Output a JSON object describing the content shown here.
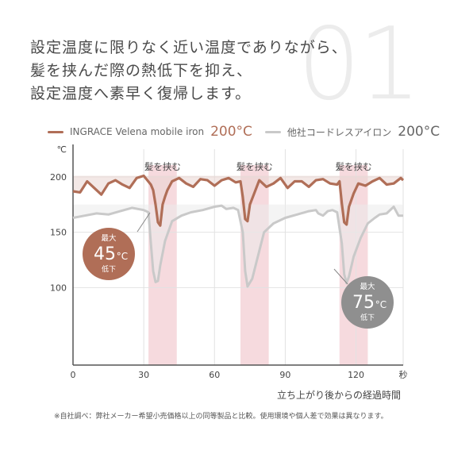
{
  "headline": {
    "line1": "設定温度に限りなく近い温度でありながら、",
    "line2": "髪を挟んだ際の熱低下を抑え、",
    "line3": "設定温度へ素早く復帰します。"
  },
  "big_number": "01",
  "legend": {
    "a_label": "INGRACE Velena mobile iron",
    "a_temp": "200°C",
    "b_label": "他社コードレスアイロン",
    "b_temp": "200°C"
  },
  "colors": {
    "a": "#b06e57",
    "b": "#c9c9c9",
    "band": "#f6dade",
    "callout_a": "#b06e57",
    "callout_b": "#8f8f8f"
  },
  "callouts": {
    "a": {
      "top": "最大",
      "value": "45",
      "unit": "°C",
      "bottom": "低下"
    },
    "b": {
      "top": "最大",
      "value": "75",
      "unit": "°C",
      "bottom": "低下"
    }
  },
  "chart_data": {
    "type": "line",
    "xlabel": "立ち上がり後からの経過時間",
    "ylabel": "℃",
    "x_unit_label": "秒",
    "xlim": [
      0,
      140
    ],
    "ylim": [
      30,
      225
    ],
    "xticks": [
      0,
      30,
      60,
      90,
      120
    ],
    "yticks": [
      100,
      150,
      200
    ],
    "grid": true,
    "annotations": [
      {
        "text": "髪を挟む",
        "x_start": 32,
        "x_end": 44
      },
      {
        "text": "髪を挟む",
        "x_start": 71,
        "x_end": 83
      },
      {
        "text": "髪を挟む",
        "x_start": 113,
        "x_end": 125
      }
    ],
    "series": [
      {
        "name": "INGRACE Velena mobile iron",
        "points": [
          [
            0,
            187
          ],
          [
            3,
            186
          ],
          [
            6,
            196
          ],
          [
            9,
            190
          ],
          [
            12,
            184
          ],
          [
            15,
            194
          ],
          [
            18,
            197
          ],
          [
            21,
            193
          ],
          [
            24,
            190
          ],
          [
            27,
            199
          ],
          [
            30,
            201
          ],
          [
            33,
            193
          ],
          [
            34,
            188
          ],
          [
            35,
            175
          ],
          [
            36,
            159
          ],
          [
            37,
            156
          ],
          [
            38,
            175
          ],
          [
            39,
            182
          ],
          [
            40,
            188
          ],
          [
            42,
            196
          ],
          [
            45,
            199
          ],
          [
            48,
            194
          ],
          [
            51,
            191
          ],
          [
            54,
            198
          ],
          [
            57,
            197
          ],
          [
            60,
            192
          ],
          [
            63,
            197
          ],
          [
            66,
            199
          ],
          [
            69,
            195
          ],
          [
            71,
            196
          ],
          [
            72,
            182
          ],
          [
            73,
            162
          ],
          [
            74,
            160
          ],
          [
            75,
            175
          ],
          [
            77,
            186
          ],
          [
            79,
            197
          ],
          [
            82,
            191
          ],
          [
            85,
            194
          ],
          [
            88,
            199
          ],
          [
            91,
            190
          ],
          [
            94,
            196
          ],
          [
            97,
            196
          ],
          [
            100,
            191
          ],
          [
            103,
            197
          ],
          [
            106,
            198
          ],
          [
            109,
            194
          ],
          [
            112,
            193
          ],
          [
            113,
            196
          ],
          [
            114,
            176
          ],
          [
            115,
            159
          ],
          [
            116,
            157
          ],
          [
            117,
            173
          ],
          [
            119,
            185
          ],
          [
            121,
            194
          ],
          [
            124,
            192
          ],
          [
            127,
            196
          ],
          [
            130,
            199
          ],
          [
            133,
            193
          ],
          [
            136,
            194
          ],
          [
            139,
            199
          ],
          [
            140,
            197
          ]
        ]
      },
      {
        "name": "他社コードレスアイロン",
        "points": [
          [
            0,
            163
          ],
          [
            5,
            165
          ],
          [
            10,
            167
          ],
          [
            15,
            166
          ],
          [
            20,
            169
          ],
          [
            25,
            172
          ],
          [
            30,
            170
          ],
          [
            32,
            168
          ],
          [
            33,
            140
          ],
          [
            34,
            115
          ],
          [
            35,
            105
          ],
          [
            36,
            106
          ],
          [
            37,
            120
          ],
          [
            39,
            142
          ],
          [
            42,
            160
          ],
          [
            46,
            165
          ],
          [
            50,
            168
          ],
          [
            55,
            170
          ],
          [
            60,
            173
          ],
          [
            63,
            174
          ],
          [
            65,
            171
          ],
          [
            68,
            172
          ],
          [
            70,
            170
          ],
          [
            72,
            150
          ],
          [
            73,
            115
          ],
          [
            74,
            101
          ],
          [
            76,
            108
          ],
          [
            78,
            125
          ],
          [
            81,
            150
          ],
          [
            85,
            158
          ],
          [
            90,
            163
          ],
          [
            95,
            166
          ],
          [
            100,
            169
          ],
          [
            103,
            170
          ],
          [
            104,
            167
          ],
          [
            106,
            165
          ],
          [
            108,
            169
          ],
          [
            110,
            170
          ],
          [
            112,
            168
          ],
          [
            114,
            140
          ],
          [
            115,
            112
          ],
          [
            116,
            104
          ],
          [
            117,
            110
          ],
          [
            119,
            128
          ],
          [
            122,
            145
          ],
          [
            125,
            158
          ],
          [
            128,
            163
          ],
          [
            130,
            166
          ],
          [
            133,
            167
          ],
          [
            136,
            173
          ],
          [
            138,
            165
          ],
          [
            140,
            165
          ]
        ]
      }
    ]
  },
  "footnote": "※自社調べ：弊社メーカー希望小売価格以上の同等製品と比較。使用環境や個人差で効果は異なります。"
}
